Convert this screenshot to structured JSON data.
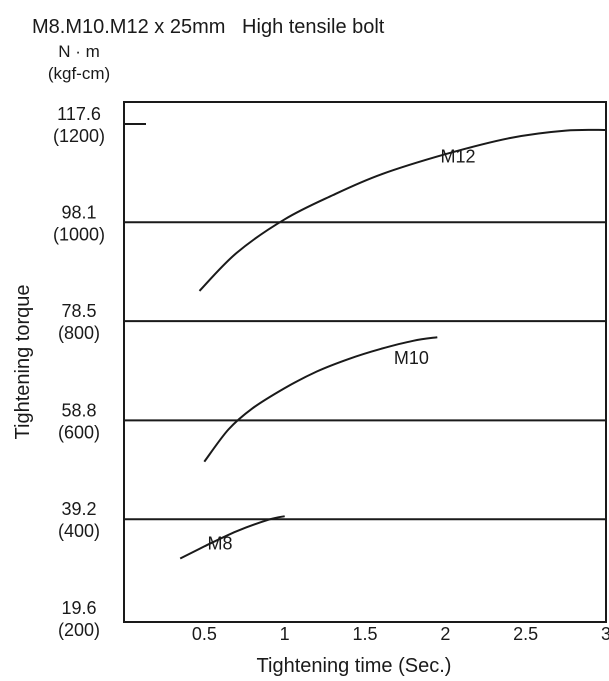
{
  "chart_data": {
    "type": "line",
    "title": "M8.M10.M12 x 25mm   High tensile bolt",
    "y_unit_top": "N · m",
    "y_unit_bottom": "(kgf-cm)",
    "xlabel": "Tightening time (Sec.)",
    "ylabel": "Tightening torque",
    "xlim": [
      0,
      3
    ],
    "ylim": [
      19.6,
      117.6
    ],
    "x_ticks": [
      {
        "value": 0.5,
        "label": "0.5"
      },
      {
        "value": 1,
        "label": "1"
      },
      {
        "value": 1.5,
        "label": "1.5"
      },
      {
        "value": 2,
        "label": "2"
      },
      {
        "value": 2.5,
        "label": "2.5"
      },
      {
        "value": 3,
        "label": "3"
      }
    ],
    "y_ticks": [
      {
        "value": 19.6,
        "label": "19.6",
        "sublabel": "(200)"
      },
      {
        "value": 39.2,
        "label": "39.2",
        "sublabel": "(400)"
      },
      {
        "value": 58.8,
        "label": "58.8",
        "sublabel": "(600)"
      },
      {
        "value": 78.5,
        "label": "78.5",
        "sublabel": "(800)"
      },
      {
        "value": 98.1,
        "label": "98.1",
        "sublabel": "(1000)"
      },
      {
        "value": 117.6,
        "label": "117.6",
        "sublabel": "(1200)"
      }
    ],
    "gridlines_y": [
      39.2,
      58.8,
      78.5,
      98.1
    ],
    "series": [
      {
        "name": "M12",
        "x": [
          0.47,
          0.7,
          1.0,
          1.3,
          1.6,
          2.0,
          2.4,
          2.75,
          3.0
        ],
        "y": [
          84.5,
          92,
          98.7,
          103.5,
          107.6,
          111.6,
          114.8,
          116.3,
          116.4
        ],
        "label_at": [
          1.97,
          110
        ]
      },
      {
        "name": "M10",
        "x": [
          0.5,
          0.65,
          0.8,
          1.0,
          1.2,
          1.4,
          1.6,
          1.8,
          1.95
        ],
        "y": [
          50.6,
          57.0,
          61.2,
          65.2,
          68.5,
          71.0,
          73.0,
          74.6,
          75.3
        ],
        "label_at": [
          1.68,
          70
        ]
      },
      {
        "name": "M8",
        "x": [
          0.35,
          0.5,
          0.7,
          0.9,
          1.0
        ],
        "y": [
          31.4,
          33.8,
          36.8,
          39.1,
          39.8
        ],
        "label_at": [
          0.52,
          33.2
        ]
      }
    ]
  }
}
